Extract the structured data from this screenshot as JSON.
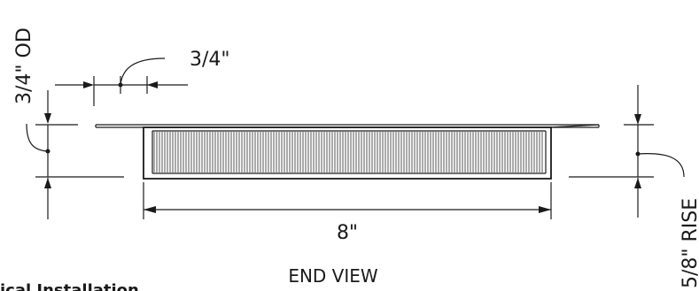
{
  "drawing": {
    "view_title": "END VIEW",
    "partial_label": "ical Installation",
    "dimensions": {
      "outer_diameter": "3/4\" OD",
      "tube_spacing": "3/4\"",
      "length": "8\"",
      "rise": "5/8\" RISE"
    }
  }
}
